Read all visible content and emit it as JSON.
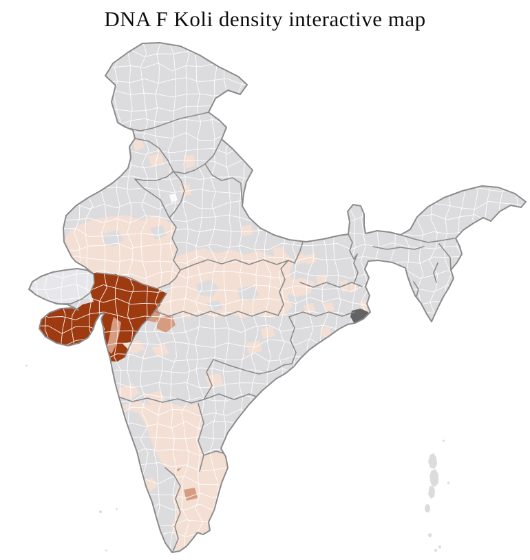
{
  "title": "DNA F Koli density interactive map",
  "map": {
    "background": "#ffffff",
    "outline_color": "#8a8a8a",
    "state_border_color": "#8a8a8a",
    "district_line_color": "#ffffff",
    "palette": {
      "none": "#dcdbde",
      "low": "#f3dfd4",
      "medium": "#d79b80",
      "high": "#9e3a10",
      "faint": "#e7e6ea",
      "delta": "#636363",
      "highlight": "#fbfafa"
    },
    "regions": [
      {
        "id": "india-base",
        "level": "none"
      },
      {
        "id": "rajasthan-south",
        "level": "low"
      },
      {
        "id": "madhya-pradesh",
        "level": "low"
      },
      {
        "id": "gray-district-cells",
        "level": "none"
      },
      {
        "id": "west-mp-medium-cells",
        "level": "medium"
      },
      {
        "id": "chhattisgarh-north-cells",
        "level": "low"
      },
      {
        "id": "gujarat",
        "level": "high"
      },
      {
        "id": "kutch",
        "level": "faint"
      },
      {
        "id": "gujarat-coast-medium-cells",
        "level": "medium"
      },
      {
        "id": "punjab-cells",
        "level": "low"
      },
      {
        "id": "uttarakhand-cell",
        "level": "low"
      },
      {
        "id": "haryana-cell",
        "level": "low"
      },
      {
        "id": "delhi-cell",
        "level": "highlight"
      },
      {
        "id": "uttar-pradesh-cells",
        "level": "low"
      },
      {
        "id": "bihar-jharkhand-cells",
        "level": "low"
      },
      {
        "id": "west-bengal-cells",
        "level": "low"
      },
      {
        "id": "odisha-cells",
        "level": "low"
      },
      {
        "id": "maharashtra-cells",
        "level": "low"
      },
      {
        "id": "karnataka",
        "level": "low"
      },
      {
        "id": "bangalore-cell",
        "level": "medium"
      },
      {
        "id": "tamil-nadu",
        "level": "low"
      },
      {
        "id": "salem-cell",
        "level": "medium"
      },
      {
        "id": "kerala-north-cells",
        "level": "low"
      },
      {
        "id": "sundarbans-delta",
        "level": "delta"
      },
      {
        "id": "andaman-nicobar",
        "level": "none"
      },
      {
        "id": "lakshadweep",
        "level": "none"
      }
    ]
  }
}
